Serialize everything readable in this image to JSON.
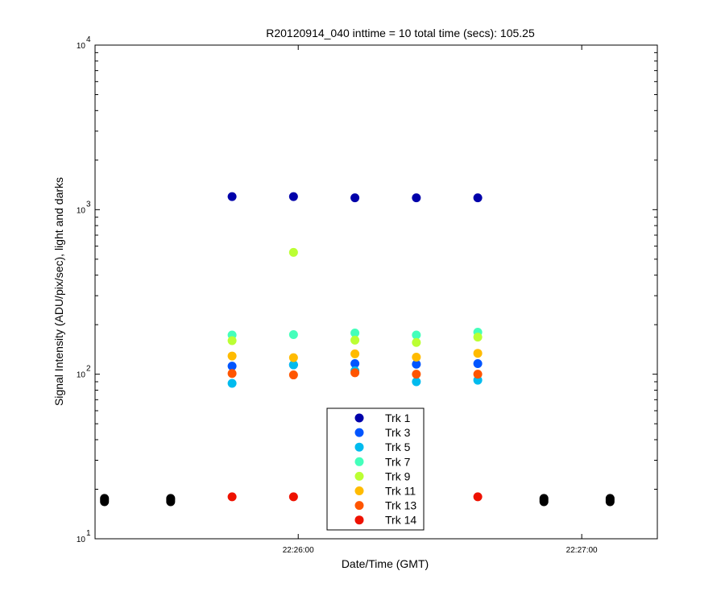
{
  "chart_data": {
    "type": "scatter",
    "title": "R20120914_040 inttime = 10 total time (secs): 105.25",
    "xlabel": "Date/Time (GMT)",
    "ylabel": "Signal Intensity (ADU/pix/sec), light and darks",
    "y_scale": "log",
    "ylim": [
      10,
      10000
    ],
    "xlim": [
      "22:25:17",
      "22:27:16"
    ],
    "x_ticks": [
      "22:26:00",
      "22:27:00"
    ],
    "y_ticks": [
      {
        "base": "10",
        "exp": "1"
      },
      {
        "base": "10",
        "exp": "2"
      },
      {
        "base": "10",
        "exp": "3"
      },
      {
        "base": "10",
        "exp": "4"
      }
    ],
    "grid": false,
    "legend_position": "bottom-center",
    "series": [
      {
        "name": "Trk 1",
        "color": "#0000aa",
        "x": [
          "22:25:46",
          "22:25:59",
          "22:26:12",
          "22:26:25",
          "22:26:38"
        ],
        "y": [
          1200,
          1200,
          1180,
          1180,
          1180
        ]
      },
      {
        "name": "Trk 3",
        "color": "#0055ff",
        "x": [
          "22:25:46",
          "22:25:59",
          "22:26:12",
          "22:26:25",
          "22:26:38"
        ],
        "y": [
          112,
          114,
          116,
          115,
          116
        ]
      },
      {
        "name": "Trk 5",
        "color": "#00bbee",
        "x": [
          "22:25:46",
          "22:25:59",
          "22:26:12",
          "22:26:25",
          "22:26:38"
        ],
        "y": [
          88,
          114,
          105,
          90,
          92
        ]
      },
      {
        "name": "Trk 7",
        "color": "#44ffbb",
        "x": [
          "22:25:46",
          "22:25:59",
          "22:26:12",
          "22:26:25",
          "22:26:38"
        ],
        "y": [
          173,
          174,
          178,
          173,
          180
        ]
      },
      {
        "name": "Trk 9",
        "color": "#bbff33",
        "x": [
          "22:25:46",
          "22:25:59",
          "22:26:12",
          "22:26:25",
          "22:26:38"
        ],
        "y": [
          160,
          550,
          161,
          156,
          168
        ]
      },
      {
        "name": "Trk 11",
        "color": "#ffbb00",
        "x": [
          "22:25:46",
          "22:25:59",
          "22:26:12",
          "22:26:25",
          "22:26:38"
        ],
        "y": [
          129,
          126,
          133,
          127,
          134
        ]
      },
      {
        "name": "Trk 13",
        "color": "#ff5500",
        "x": [
          "22:25:46",
          "22:25:59",
          "22:26:12",
          "22:26:25",
          "22:26:38"
        ],
        "y": [
          101,
          99,
          102,
          100,
          100
        ]
      },
      {
        "name": "Trk 14",
        "color": "#ee1100",
        "x": [
          "22:25:46",
          "22:25:59",
          "22:26:38"
        ],
        "y": [
          18,
          18,
          18
        ]
      },
      {
        "color": "#000000",
        "x": [
          "22:25:19",
          "22:25:19",
          "22:25:19",
          "22:25:33",
          "22:25:33",
          "22:25:33",
          "22:26:52",
          "22:26:52",
          "22:26:52",
          "22:27:06",
          "22:27:06",
          "22:27:06"
        ],
        "y": [
          17.6,
          17.2,
          16.8,
          17.6,
          17.2,
          16.8,
          17.6,
          17.2,
          16.8,
          17.6,
          17.2,
          16.8
        ]
      }
    ]
  }
}
